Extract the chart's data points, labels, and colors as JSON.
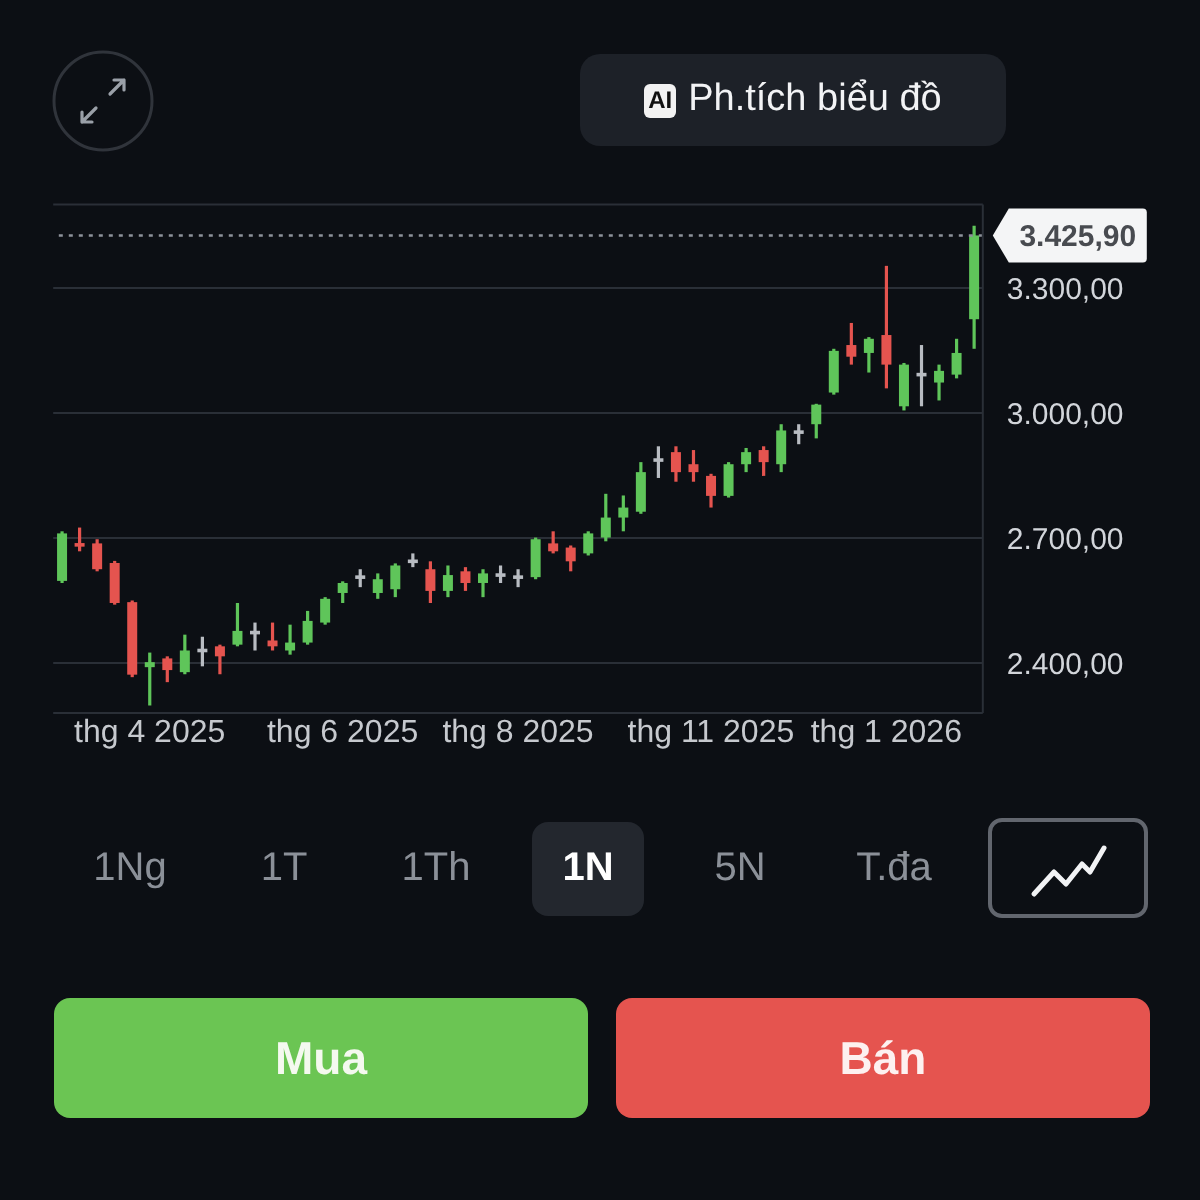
{
  "chart_data": {
    "type": "candlestick",
    "categories": [
      null,
      null,
      null,
      null,
      null,
      "thg 4 2025",
      null,
      null,
      null,
      null,
      null,
      null,
      null,
      null,
      null,
      null,
      "thg 6 2025",
      null,
      null,
      null,
      null,
      null,
      null,
      null,
      null,
      null,
      "thg 8 2025",
      null,
      null,
      null,
      null,
      null,
      null,
      null,
      null,
      null,
      null,
      "thg 11 2025",
      null,
      null,
      null,
      null,
      null,
      null,
      null,
      null,
      null,
      "thg 1 2026",
      null,
      null,
      null,
      null,
      null
    ],
    "ohlc": [
      [
        2597,
        2716,
        2592,
        2711
      ],
      [
        2687,
        2725,
        2668,
        2680
      ],
      [
        2687,
        2697,
        2620,
        2625
      ],
      [
        2640,
        2645,
        2540,
        2544
      ],
      [
        2546,
        2550,
        2366,
        2372
      ],
      [
        2390,
        2425,
        2298,
        2402
      ],
      [
        2411,
        2416,
        2354,
        2383
      ],
      [
        2378,
        2468,
        2373,
        2430
      ],
      [
        2430,
        2463,
        2392,
        2430
      ],
      [
        2440,
        2444,
        2373,
        2416
      ],
      [
        2444,
        2544,
        2440,
        2477
      ],
      [
        2473,
        2497,
        2430,
        2473
      ],
      [
        2454,
        2497,
        2430,
        2440
      ],
      [
        2430,
        2492,
        2420,
        2449
      ],
      [
        2449,
        2525,
        2444,
        2501
      ],
      [
        2497,
        2558,
        2492,
        2554
      ],
      [
        2568,
        2596,
        2544,
        2592
      ],
      [
        2606,
        2625,
        2582,
        2606
      ],
      [
        2568,
        2615,
        2554,
        2601
      ],
      [
        2577,
        2639,
        2558,
        2634
      ],
      [
        2644,
        2663,
        2630,
        2644
      ],
      [
        2625,
        2644,
        2544,
        2573
      ],
      [
        2573,
        2634,
        2558,
        2611
      ],
      [
        2620,
        2630,
        2573,
        2592
      ],
      [
        2592,
        2625,
        2558,
        2615
      ],
      [
        2611,
        2634,
        2592,
        2611
      ],
      [
        2606,
        2625,
        2582,
        2606
      ],
      [
        2606,
        2701,
        2601,
        2697
      ],
      [
        2687,
        2716,
        2663,
        2668
      ],
      [
        2677,
        2682,
        2620,
        2644
      ],
      [
        2663,
        2716,
        2658,
        2711
      ],
      [
        2701,
        2806,
        2692,
        2749
      ],
      [
        2749,
        2802,
        2716,
        2773
      ],
      [
        2763,
        2882,
        2758,
        2858
      ],
      [
        2887,
        2920,
        2844,
        2887
      ],
      [
        2906,
        2920,
        2835,
        2858
      ],
      [
        2877,
        2911,
        2835,
        2858
      ],
      [
        2849,
        2854,
        2773,
        2801
      ],
      [
        2801,
        2882,
        2797,
        2877
      ],
      [
        2877,
        2916,
        2858,
        2906
      ],
      [
        2911,
        2920,
        2849,
        2882
      ],
      [
        2877,
        2973,
        2858,
        2958
      ],
      [
        2954,
        2973,
        2925,
        2954
      ],
      [
        2973,
        3022,
        2939,
        3020
      ],
      [
        3049,
        3154,
        3044,
        3149
      ],
      [
        3163,
        3216,
        3116,
        3135
      ],
      [
        3144,
        3182,
        3097,
        3178
      ],
      [
        3187,
        3353,
        3059,
        3116
      ],
      [
        3016,
        3120,
        3006,
        3116
      ],
      [
        3092,
        3163,
        3016,
        3092
      ],
      [
        3073,
        3116,
        3030,
        3101
      ],
      [
        3092,
        3178,
        3083,
        3144
      ],
      [
        3225,
        3449,
        3154,
        3426
      ]
    ],
    "colors": [
      "#5fc55a",
      "#e5544f",
      "#e5544f",
      "#e5544f",
      "#e5544f",
      "#5fc55a",
      "#e5544f",
      "#5fc55a",
      "#b8bcc2",
      "#e5544f",
      "#5fc55a",
      "#b8bcc2",
      "#e5544f",
      "#5fc55a",
      "#5fc55a",
      "#5fc55a",
      "#5fc55a",
      "#b8bcc2",
      "#5fc55a",
      "#5fc55a",
      "#b8bcc2",
      "#e5544f",
      "#5fc55a",
      "#e5544f",
      "#5fc55a",
      "#b8bcc2",
      "#b8bcc2",
      "#5fc55a",
      "#e5544f",
      "#e5544f",
      "#5fc55a",
      "#5fc55a",
      "#5fc55a",
      "#5fc55a",
      "#b8bcc2",
      "#e5544f",
      "#e5544f",
      "#e5544f",
      "#5fc55a",
      "#5fc55a",
      "#e5544f",
      "#5fc55a",
      "#b8bcc2",
      "#5fc55a",
      "#5fc55a",
      "#e5544f",
      "#5fc55a",
      "#e5544f",
      "#5fc55a",
      "#b8bcc2",
      "#5fc55a",
      "#5fc55a",
      "#5fc55a"
    ],
    "ylim": [
      2280,
      3500
    ],
    "yticks": [
      {
        "value": 2400,
        "label": "2.400,00"
      },
      {
        "value": 2700,
        "label": "2.700,00"
      },
      {
        "value": 3000,
        "label": "3.000,00"
      },
      {
        "value": 3300,
        "label": "3.300,00"
      }
    ],
    "grid": "y",
    "ref_lines": [
      {
        "axis": "y",
        "value": 3425.9,
        "label": "3.425,90",
        "line_style": "dotted",
        "color": "#8d929a"
      }
    ],
    "annotations": [
      "AI",
      "Ph.tích biểu đồ",
      "1Ng",
      "1T",
      "1Th",
      "1N",
      "5N",
      "T.đa",
      "Mua",
      "Bán"
    ]
  }
}
